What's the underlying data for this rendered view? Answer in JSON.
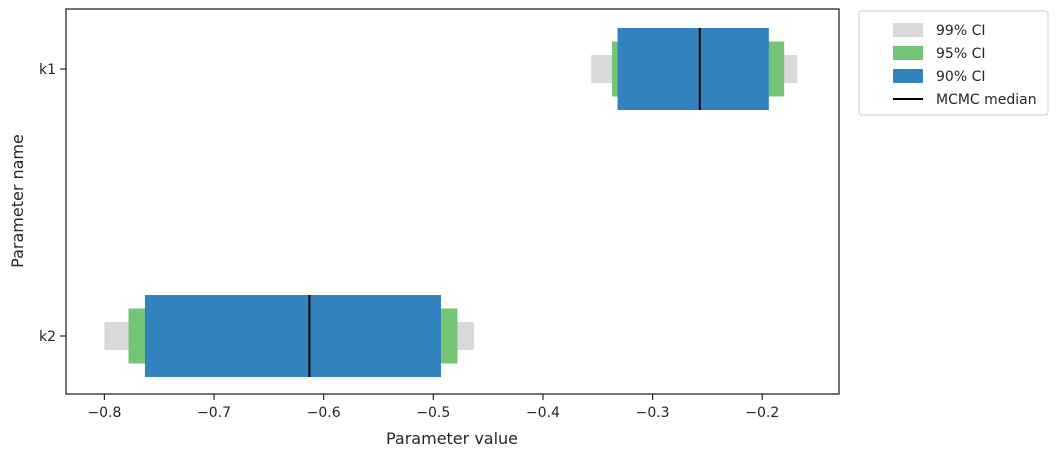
{
  "chart_data": {
    "type": "interval",
    "xlabel": "Parameter value",
    "ylabel": "Parameter name",
    "xlim": [
      -0.835,
      -0.13
    ],
    "xticks": [
      -0.8,
      -0.7,
      -0.6,
      -0.5,
      -0.4,
      -0.3,
      -0.2
    ],
    "xtick_labels": [
      "−0.8",
      "−0.7",
      "−0.6",
      "−0.5",
      "−0.4",
      "−0.3",
      "−0.2"
    ],
    "categories": [
      "k1",
      "k2"
    ],
    "grid": false,
    "legend_position": "outside-top-right",
    "series": [
      {
        "name": "99% CI",
        "color": "#d9d9d9",
        "intervals": [
          [
            -0.356,
            -0.168
          ],
          [
            -0.8,
            -0.463
          ]
        ]
      },
      {
        "name": "95% CI",
        "color": "#74c476",
        "intervals": [
          [
            -0.337,
            -0.18
          ],
          [
            -0.778,
            -0.478
          ]
        ]
      },
      {
        "name": "90% CI",
        "color": "#3182bd",
        "intervals": [
          [
            -0.332,
            -0.194
          ],
          [
            -0.763,
            -0.493
          ]
        ]
      },
      {
        "name": "MCMC median",
        "color": "#000000",
        "values": [
          -0.257,
          -0.613
        ]
      }
    ]
  }
}
